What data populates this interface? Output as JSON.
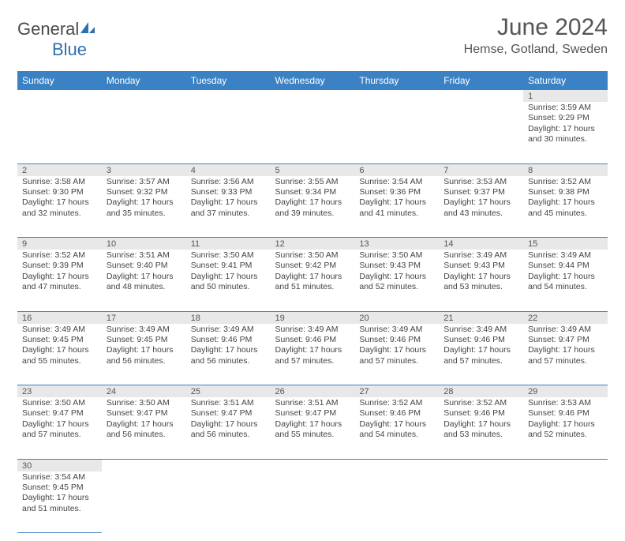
{
  "brand": {
    "part1": "General",
    "part2": "Blue"
  },
  "title": "June 2024",
  "location": "Hemse, Gotland, Sweden",
  "colors": {
    "header_bg": "#3b82c4",
    "header_fg": "#ffffff",
    "daynum_bg": "#e8e8e8",
    "border": "#3b82c4",
    "text": "#444444",
    "title_color": "#555555"
  },
  "weekdays": [
    "Sunday",
    "Monday",
    "Tuesday",
    "Wednesday",
    "Thursday",
    "Friday",
    "Saturday"
  ],
  "weeks": [
    [
      null,
      null,
      null,
      null,
      null,
      null,
      {
        "n": "1",
        "sr": "Sunrise: 3:59 AM",
        "ss": "Sunset: 9:29 PM",
        "d1": "Daylight: 17 hours",
        "d2": "and 30 minutes."
      }
    ],
    [
      {
        "n": "2",
        "sr": "Sunrise: 3:58 AM",
        "ss": "Sunset: 9:30 PM",
        "d1": "Daylight: 17 hours",
        "d2": "and 32 minutes."
      },
      {
        "n": "3",
        "sr": "Sunrise: 3:57 AM",
        "ss": "Sunset: 9:32 PM",
        "d1": "Daylight: 17 hours",
        "d2": "and 35 minutes."
      },
      {
        "n": "4",
        "sr": "Sunrise: 3:56 AM",
        "ss": "Sunset: 9:33 PM",
        "d1": "Daylight: 17 hours",
        "d2": "and 37 minutes."
      },
      {
        "n": "5",
        "sr": "Sunrise: 3:55 AM",
        "ss": "Sunset: 9:34 PM",
        "d1": "Daylight: 17 hours",
        "d2": "and 39 minutes."
      },
      {
        "n": "6",
        "sr": "Sunrise: 3:54 AM",
        "ss": "Sunset: 9:36 PM",
        "d1": "Daylight: 17 hours",
        "d2": "and 41 minutes."
      },
      {
        "n": "7",
        "sr": "Sunrise: 3:53 AM",
        "ss": "Sunset: 9:37 PM",
        "d1": "Daylight: 17 hours",
        "d2": "and 43 minutes."
      },
      {
        "n": "8",
        "sr": "Sunrise: 3:52 AM",
        "ss": "Sunset: 9:38 PM",
        "d1": "Daylight: 17 hours",
        "d2": "and 45 minutes."
      }
    ],
    [
      {
        "n": "9",
        "sr": "Sunrise: 3:52 AM",
        "ss": "Sunset: 9:39 PM",
        "d1": "Daylight: 17 hours",
        "d2": "and 47 minutes."
      },
      {
        "n": "10",
        "sr": "Sunrise: 3:51 AM",
        "ss": "Sunset: 9:40 PM",
        "d1": "Daylight: 17 hours",
        "d2": "and 48 minutes."
      },
      {
        "n": "11",
        "sr": "Sunrise: 3:50 AM",
        "ss": "Sunset: 9:41 PM",
        "d1": "Daylight: 17 hours",
        "d2": "and 50 minutes."
      },
      {
        "n": "12",
        "sr": "Sunrise: 3:50 AM",
        "ss": "Sunset: 9:42 PM",
        "d1": "Daylight: 17 hours",
        "d2": "and 51 minutes."
      },
      {
        "n": "13",
        "sr": "Sunrise: 3:50 AM",
        "ss": "Sunset: 9:43 PM",
        "d1": "Daylight: 17 hours",
        "d2": "and 52 minutes."
      },
      {
        "n": "14",
        "sr": "Sunrise: 3:49 AM",
        "ss": "Sunset: 9:43 PM",
        "d1": "Daylight: 17 hours",
        "d2": "and 53 minutes."
      },
      {
        "n": "15",
        "sr": "Sunrise: 3:49 AM",
        "ss": "Sunset: 9:44 PM",
        "d1": "Daylight: 17 hours",
        "d2": "and 54 minutes."
      }
    ],
    [
      {
        "n": "16",
        "sr": "Sunrise: 3:49 AM",
        "ss": "Sunset: 9:45 PM",
        "d1": "Daylight: 17 hours",
        "d2": "and 55 minutes."
      },
      {
        "n": "17",
        "sr": "Sunrise: 3:49 AM",
        "ss": "Sunset: 9:45 PM",
        "d1": "Daylight: 17 hours",
        "d2": "and 56 minutes."
      },
      {
        "n": "18",
        "sr": "Sunrise: 3:49 AM",
        "ss": "Sunset: 9:46 PM",
        "d1": "Daylight: 17 hours",
        "d2": "and 56 minutes."
      },
      {
        "n": "19",
        "sr": "Sunrise: 3:49 AM",
        "ss": "Sunset: 9:46 PM",
        "d1": "Daylight: 17 hours",
        "d2": "and 57 minutes."
      },
      {
        "n": "20",
        "sr": "Sunrise: 3:49 AM",
        "ss": "Sunset: 9:46 PM",
        "d1": "Daylight: 17 hours",
        "d2": "and 57 minutes."
      },
      {
        "n": "21",
        "sr": "Sunrise: 3:49 AM",
        "ss": "Sunset: 9:46 PM",
        "d1": "Daylight: 17 hours",
        "d2": "and 57 minutes."
      },
      {
        "n": "22",
        "sr": "Sunrise: 3:49 AM",
        "ss": "Sunset: 9:47 PM",
        "d1": "Daylight: 17 hours",
        "d2": "and 57 minutes."
      }
    ],
    [
      {
        "n": "23",
        "sr": "Sunrise: 3:50 AM",
        "ss": "Sunset: 9:47 PM",
        "d1": "Daylight: 17 hours",
        "d2": "and 57 minutes."
      },
      {
        "n": "24",
        "sr": "Sunrise: 3:50 AM",
        "ss": "Sunset: 9:47 PM",
        "d1": "Daylight: 17 hours",
        "d2": "and 56 minutes."
      },
      {
        "n": "25",
        "sr": "Sunrise: 3:51 AM",
        "ss": "Sunset: 9:47 PM",
        "d1": "Daylight: 17 hours",
        "d2": "and 56 minutes."
      },
      {
        "n": "26",
        "sr": "Sunrise: 3:51 AM",
        "ss": "Sunset: 9:47 PM",
        "d1": "Daylight: 17 hours",
        "d2": "and 55 minutes."
      },
      {
        "n": "27",
        "sr": "Sunrise: 3:52 AM",
        "ss": "Sunset: 9:46 PM",
        "d1": "Daylight: 17 hours",
        "d2": "and 54 minutes."
      },
      {
        "n": "28",
        "sr": "Sunrise: 3:52 AM",
        "ss": "Sunset: 9:46 PM",
        "d1": "Daylight: 17 hours",
        "d2": "and 53 minutes."
      },
      {
        "n": "29",
        "sr": "Sunrise: 3:53 AM",
        "ss": "Sunset: 9:46 PM",
        "d1": "Daylight: 17 hours",
        "d2": "and 52 minutes."
      }
    ],
    [
      {
        "n": "30",
        "sr": "Sunrise: 3:54 AM",
        "ss": "Sunset: 9:45 PM",
        "d1": "Daylight: 17 hours",
        "d2": "and 51 minutes."
      },
      null,
      null,
      null,
      null,
      null,
      null
    ]
  ]
}
